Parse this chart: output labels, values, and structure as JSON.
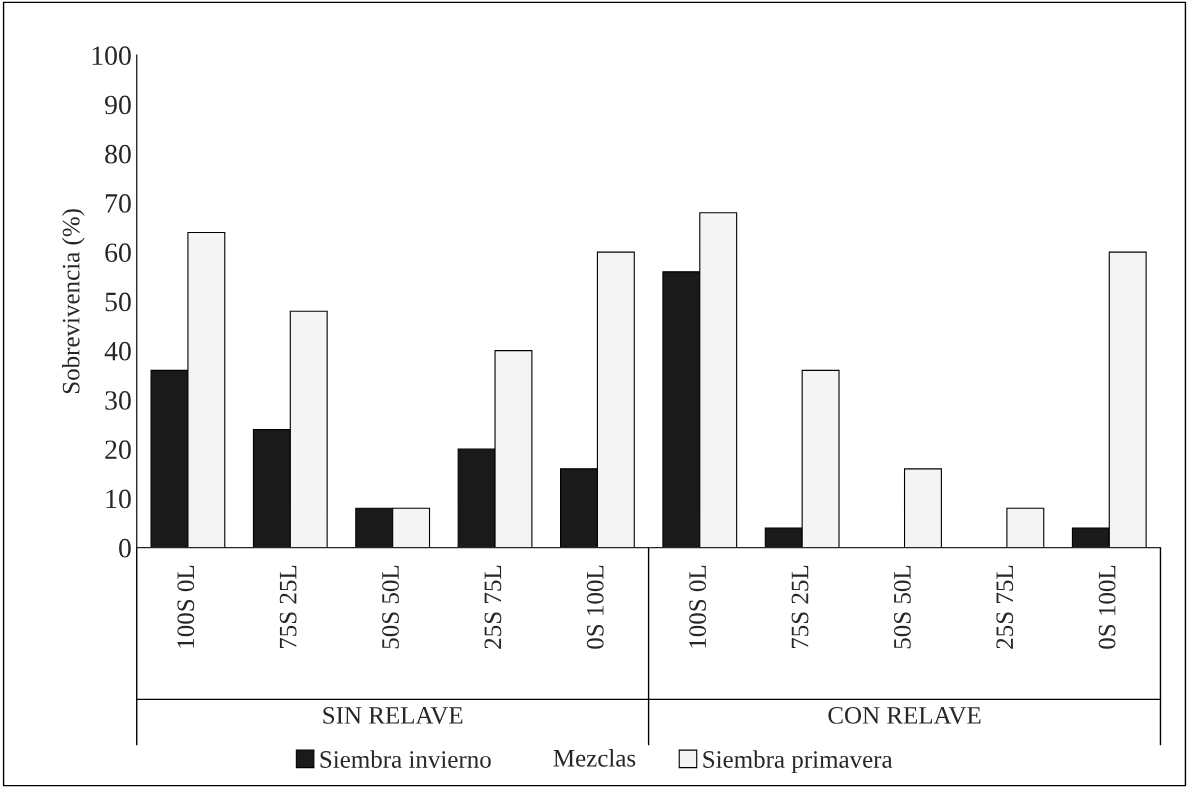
{
  "chart_data": {
    "type": "bar",
    "categories": [
      "100S 0L",
      "75S 25L",
      "50S 50L",
      "25S 75L",
      "0S 100L",
      "100S 0L",
      "75S 25L",
      "50S 50L",
      "25S 75L",
      "0S 100L"
    ],
    "series": [
      {
        "name": "Siembra invierno",
        "color": "#1a1a1a",
        "values": [
          36,
          24,
          8,
          20,
          16,
          56,
          4,
          0,
          0,
          4
        ]
      },
      {
        "name": "Siembra primavera",
        "color": "#f4f4f4",
        "values": [
          64,
          48,
          8,
          40,
          60,
          68,
          36,
          16,
          8,
          60
        ]
      }
    ],
    "xlabel": "Mezclas",
    "ylabel": "Sobrevivencia (%)",
    "annotations": [
      "SIN RELAVE",
      "CON RELAVE"
    ],
    "ylim": [
      0,
      100
    ],
    "yticks": [
      0,
      10,
      20,
      30,
      40,
      50,
      60,
      70,
      80,
      90,
      100
    ],
    "grid": false,
    "legend": "bottom"
  }
}
